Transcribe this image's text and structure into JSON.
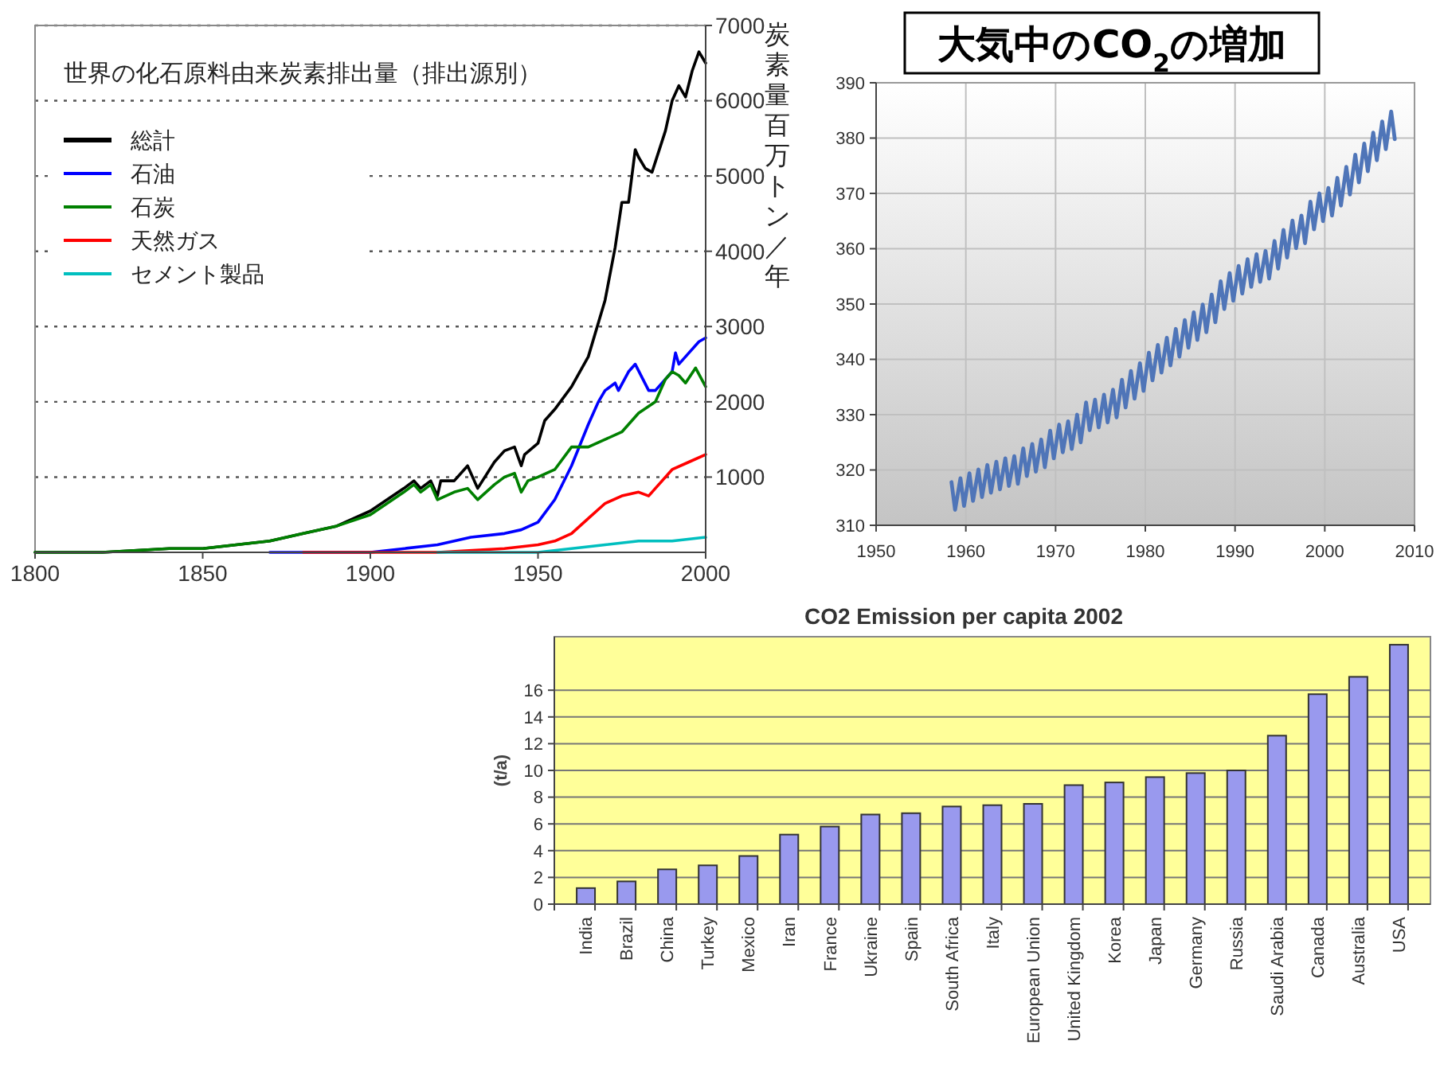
{
  "chart_data": [
    {
      "type": "line",
      "title": "世界の化石原料由来炭素排出量（排出源別）",
      "ylabel": "炭素量百万トン／年",
      "xlim": [
        1800,
        2000
      ],
      "xticks": [
        1800,
        1850,
        1900,
        1950,
        2000
      ],
      "ylim": [
        0,
        7000
      ],
      "yticks": [
        1000,
        2000,
        3000,
        4000,
        5000,
        6000,
        7000
      ],
      "grid": "y",
      "legend": "top left",
      "marker": "none",
      "line_style": "solid",
      "series": [
        {
          "name": "総計",
          "color": "#000000",
          "x": [
            1800,
            1820,
            1840,
            1850,
            1860,
            1870,
            1880,
            1890,
            1900,
            1905,
            1910,
            1913,
            1915,
            1918,
            1920,
            1921,
            1925,
            1929,
            1932,
            1937,
            1940,
            1943,
            1945,
            1946,
            1950,
            1952,
            1955,
            1960,
            1965,
            1970,
            1973,
            1975,
            1977,
            1979,
            1980,
            1982,
            1984,
            1988,
            1990,
            1992,
            1994,
            1996,
            1998,
            2000
          ],
          "values": [
            0,
            0,
            50,
            50,
            100,
            150,
            250,
            350,
            550,
            700,
            850,
            950,
            850,
            950,
            750,
            950,
            950,
            1150,
            850,
            1200,
            1350,
            1400,
            1150,
            1300,
            1450,
            1750,
            1900,
            2200,
            2600,
            3350,
            4050,
            4650,
            4650,
            5350,
            5250,
            5100,
            5050,
            5600,
            6000,
            6200,
            6050,
            6400,
            6650,
            6500
          ]
        },
        {
          "name": "石油",
          "color": "#0000ff",
          "x": [
            1870,
            1900,
            1920,
            1930,
            1940,
            1945,
            1950,
            1955,
            1960,
            1965,
            1968,
            1970,
            1973,
            1974,
            1977,
            1979,
            1983,
            1985,
            1990,
            1991,
            1992,
            1995,
            1998,
            2000
          ],
          "values": [
            0,
            0,
            100,
            200,
            250,
            300,
            400,
            700,
            1150,
            1700,
            2000,
            2150,
            2250,
            2150,
            2400,
            2500,
            2150,
            2150,
            2400,
            2650,
            2500,
            2650,
            2800,
            2850
          ]
        },
        {
          "name": "石炭",
          "color": "#008000",
          "x": [
            1800,
            1820,
            1840,
            1850,
            1860,
            1870,
            1880,
            1890,
            1900,
            1910,
            1913,
            1915,
            1918,
            1920,
            1925,
            1929,
            1932,
            1937,
            1940,
            1943,
            1945,
            1947,
            1950,
            1955,
            1960,
            1965,
            1970,
            1975,
            1980,
            1985,
            1988,
            1990,
            1992,
            1994,
            1997,
            2000
          ],
          "values": [
            0,
            0,
            50,
            50,
            100,
            150,
            250,
            350,
            500,
            800,
            900,
            800,
            900,
            700,
            800,
            850,
            700,
            900,
            1000,
            1050,
            800,
            950,
            1000,
            1100,
            1400,
            1400,
            1500,
            1600,
            1850,
            2000,
            2300,
            2400,
            2350,
            2250,
            2450,
            2200
          ]
        },
        {
          "name": "天然ガス",
          "color": "#ff0000",
          "x": [
            1880,
            1900,
            1920,
            1940,
            1950,
            1955,
            1960,
            1965,
            1970,
            1975,
            1980,
            1983,
            1985,
            1990,
            1995,
            2000
          ],
          "values": [
            0,
            0,
            0,
            50,
            100,
            150,
            250,
            450,
            650,
            750,
            800,
            750,
            850,
            1100,
            1200,
            1300
          ]
        },
        {
          "name": "セメント製品",
          "color": "#00bfbf",
          "x": [
            1920,
            1950,
            1960,
            1970,
            1980,
            1990,
            2000
          ],
          "values": [
            0,
            0,
            50,
            100,
            150,
            150,
            200
          ]
        }
      ]
    },
    {
      "type": "line",
      "title": "大気中のCO$_{2}$の増加",
      "xlim": [
        1950,
        2010
      ],
      "xticks": [
        1950,
        1960,
        1970,
        1980,
        1990,
        2000,
        2010
      ],
      "ylim": [
        310,
        390
      ],
      "yticks": [
        310,
        320,
        330,
        340,
        350,
        360,
        370,
        380,
        390
      ],
      "grid": true,
      "marker": "none",
      "line_style": "solid",
      "series": [
        {
          "color": "#4f75b8",
          "x": [
            1958.4,
            1958.8,
            1959.4,
            1959.8,
            1960.4,
            1960.8,
            1961.4,
            1961.8,
            1962.4,
            1962.8,
            1963.4,
            1963.8,
            1964.4,
            1964.8,
            1965.4,
            1965.8,
            1966.4,
            1966.8,
            1967.4,
            1967.8,
            1968.4,
            1968.8,
            1969.4,
            1969.8,
            1970.4,
            1970.8,
            1971.4,
            1971.8,
            1972.4,
            1972.8,
            1973.4,
            1973.8,
            1974.4,
            1974.8,
            1975.4,
            1975.8,
            1976.4,
            1976.8,
            1977.4,
            1977.8,
            1978.4,
            1978.8,
            1979.4,
            1979.8,
            1980.4,
            1980.8,
            1981.4,
            1981.8,
            1982.4,
            1982.8,
            1983.4,
            1983.8,
            1984.4,
            1984.8,
            1985.4,
            1985.8,
            1986.4,
            1986.8,
            1987.4,
            1987.8,
            1988.4,
            1988.8,
            1989.4,
            1989.8,
            1990.4,
            1990.8,
            1991.4,
            1991.8,
            1992.4,
            1992.8,
            1993.4,
            1993.8,
            1994.4,
            1994.8,
            1995.4,
            1995.8,
            1996.4,
            1996.8,
            1997.4,
            1997.8,
            1998.4,
            1998.8,
            1999.4,
            1999.8,
            2000.4,
            2000.8,
            2001.4,
            2001.8,
            2002.4,
            2002.8,
            2003.4,
            2003.8,
            2004.4,
            2004.8,
            2005.4,
            2005.8,
            2006.4,
            2006.8,
            2007.4,
            2007.8
          ],
          "values": [
            317.8,
            312.8,
            318.5,
            313.5,
            319.4,
            314.4,
            320.1,
            315.1,
            320.9,
            315.9,
            321.5,
            316.5,
            322.1,
            317.1,
            322.5,
            317.5,
            323.9,
            318.9,
            324.7,
            319.7,
            325.5,
            320.5,
            327.1,
            322.1,
            328.2,
            323.2,
            328.8,
            323.8,
            330.0,
            325.0,
            332.2,
            327.2,
            332.7,
            327.7,
            333.6,
            328.6,
            334.5,
            329.5,
            336.3,
            331.3,
            337.9,
            332.9,
            339.3,
            334.3,
            341.2,
            336.2,
            342.6,
            337.6,
            343.9,
            338.9,
            345.5,
            340.5,
            347.1,
            342.1,
            348.5,
            343.5,
            349.9,
            344.9,
            351.7,
            346.7,
            354.1,
            349.1,
            355.6,
            350.6,
            356.9,
            351.9,
            358.1,
            353.1,
            359.0,
            354.0,
            359.6,
            354.6,
            361.4,
            356.4,
            363.4,
            358.4,
            365.1,
            360.1,
            366.0,
            361.0,
            368.5,
            363.5,
            370.0,
            365.0,
            371.0,
            366.0,
            372.8,
            367.8,
            374.8,
            369.8,
            377.0,
            372.0,
            379.0,
            374.0,
            381.0,
            376.0,
            383.0,
            378.0,
            384.8,
            379.8
          ]
        }
      ]
    },
    {
      "type": "bar",
      "title": "CO2 Emission per capita 2002",
      "ylabel": "(t/a)",
      "categories": [
        "India",
        "Brazil",
        "China",
        "Turkey",
        "Mexico",
        "Iran",
        "France",
        "Ukraine",
        "Spain",
        "South Africa",
        "Italy",
        "European Union",
        "United Kingdom",
        "Korea",
        "Japan",
        "Germany",
        "Russia",
        "Saudi Arabia",
        "Canada",
        "Australia",
        "USA"
      ],
      "values": [
        1.2,
        1.7,
        2.6,
        2.9,
        3.6,
        5.2,
        5.8,
        6.7,
        6.8,
        7.3,
        7.4,
        7.5,
        8.9,
        9.1,
        9.5,
        9.8,
        10.0,
        12.6,
        15.7,
        17.0,
        19.4
      ],
      "color": "#9999ee",
      "ylim": [
        0,
        20
      ],
      "yticks": [
        0,
        2,
        4,
        6,
        8,
        10,
        12,
        14,
        16
      ],
      "grid": "y"
    }
  ]
}
